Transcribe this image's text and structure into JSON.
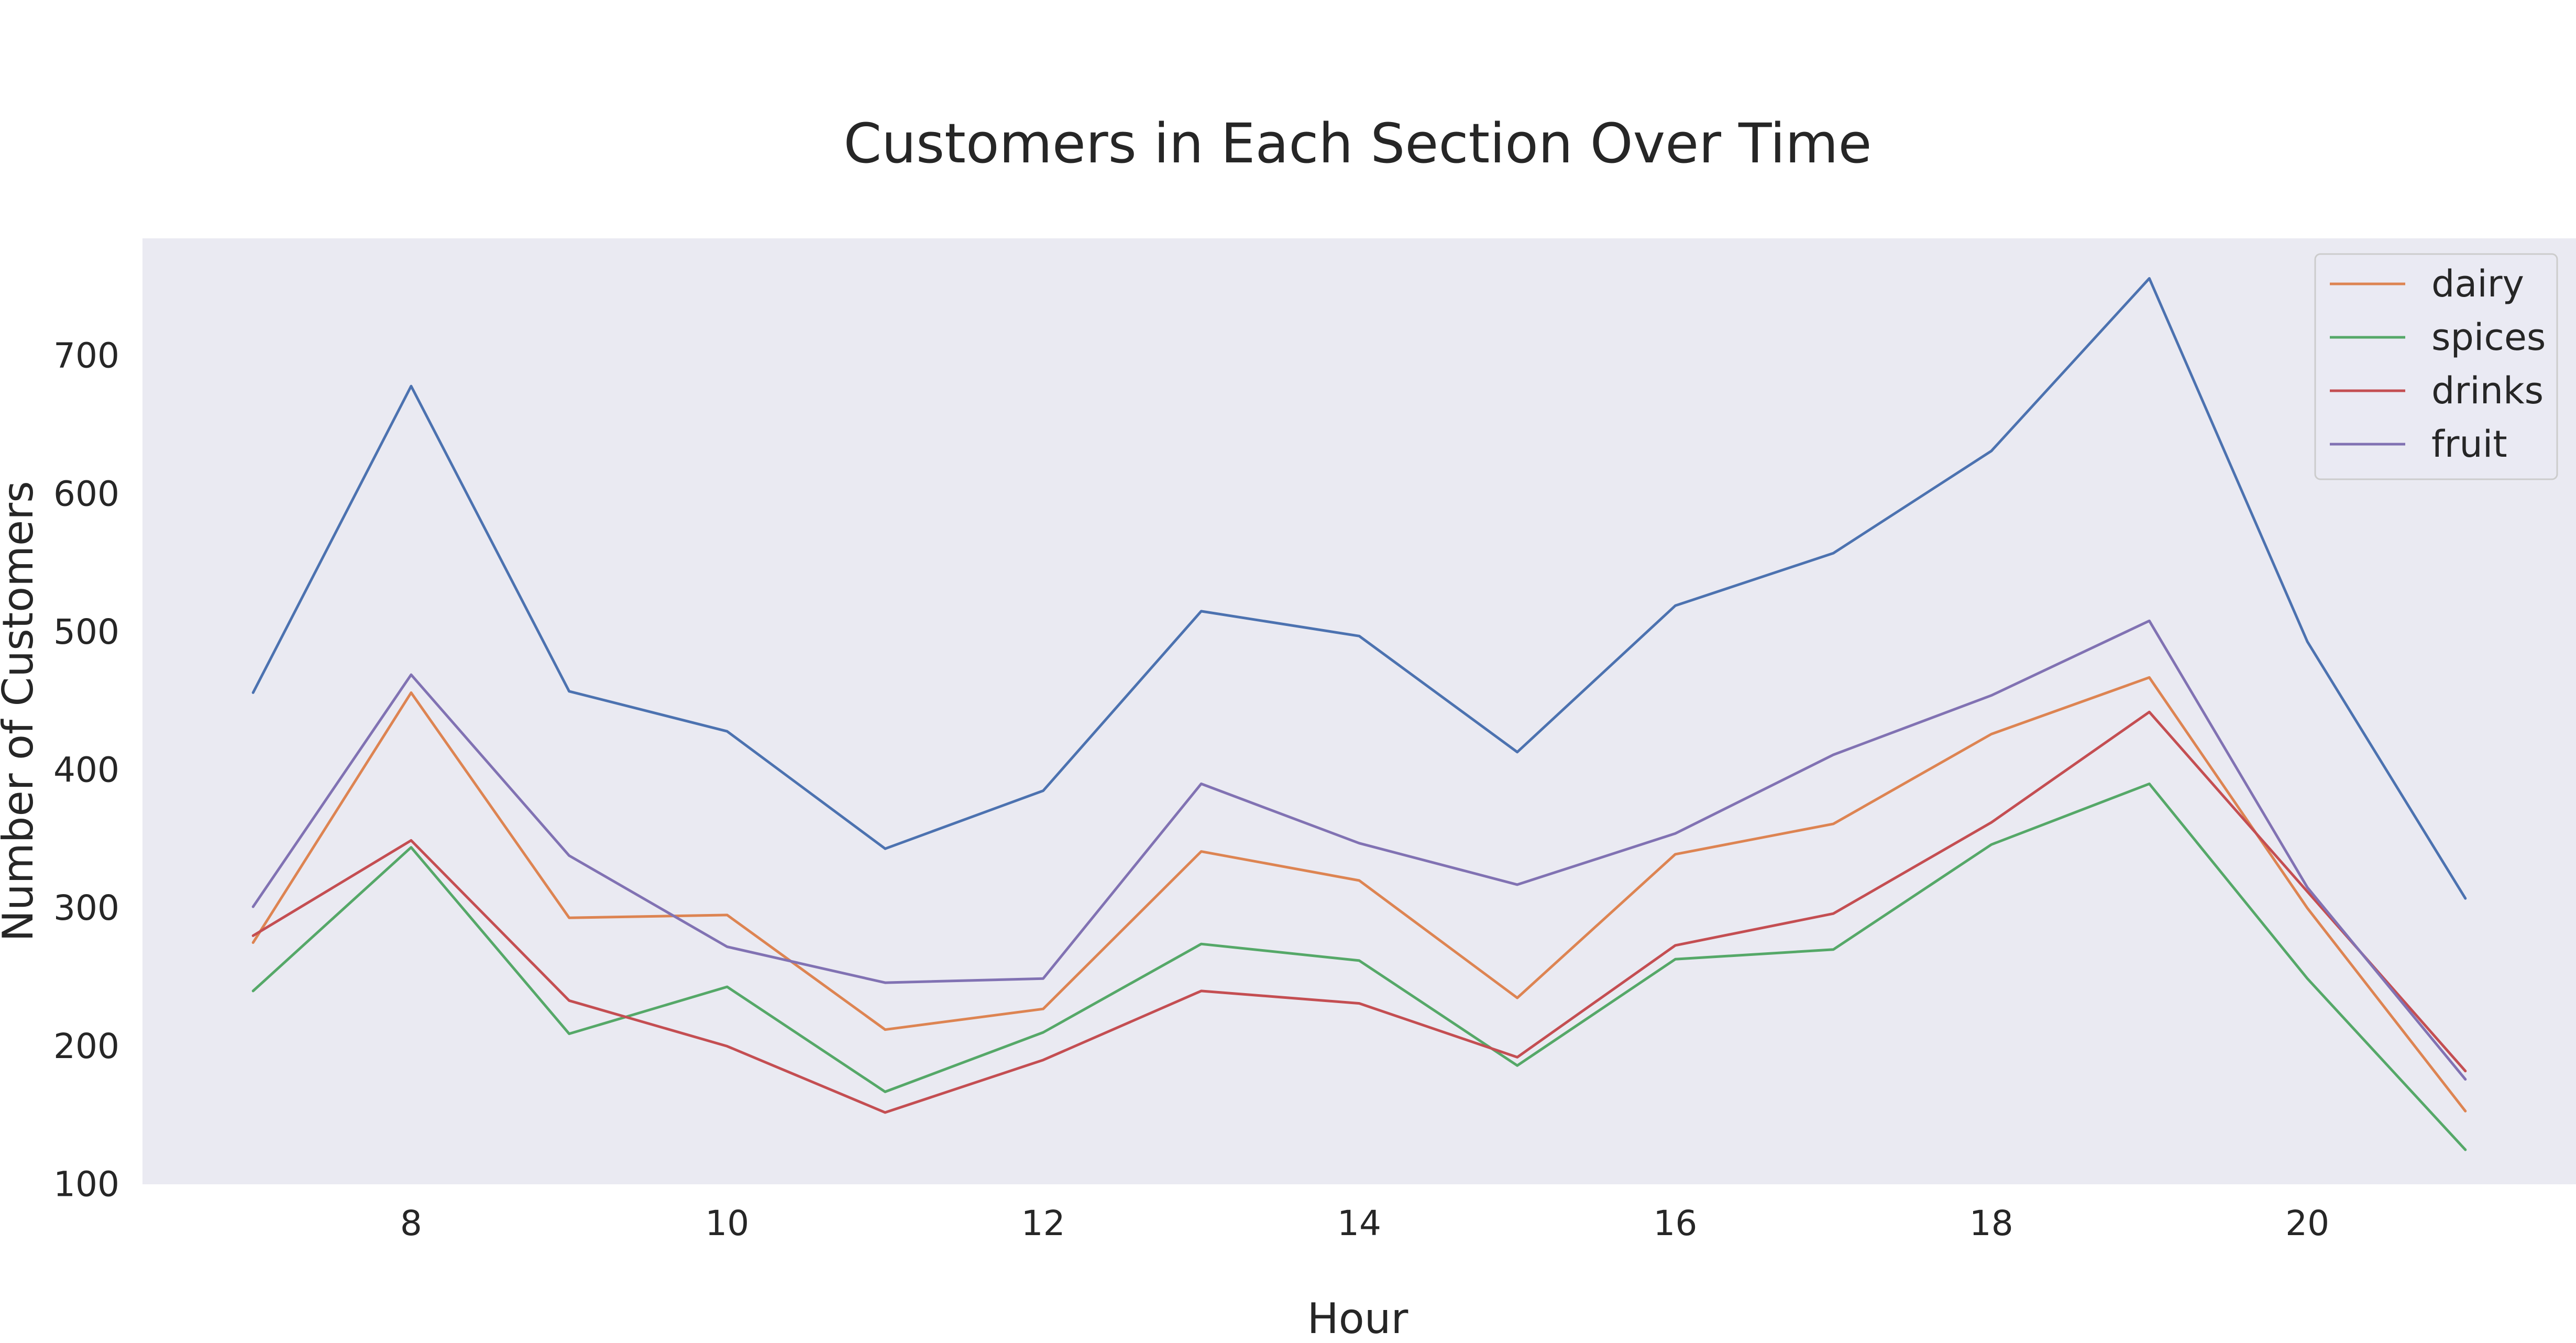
{
  "chart_data": {
    "type": "line",
    "title": "Customers in Each Section Over Time",
    "xlabel": "Hour",
    "ylabel": "Number of Customers",
    "x": [
      7,
      8,
      9,
      10,
      11,
      12,
      13,
      14,
      15,
      16,
      17,
      18,
      19,
      20,
      21
    ],
    "xlim": [
      6.3,
      21.7
    ],
    "ylim": [
      100,
      785
    ],
    "xticks": [
      8,
      10,
      12,
      14,
      16,
      18,
      20
    ],
    "yticks": [
      100,
      200,
      300,
      400,
      500,
      600,
      700
    ],
    "grid": false,
    "legend_position": "top-right",
    "background_color": "#eaeaf2",
    "series": [
      {
        "values": [
          456,
          678,
          457,
          428,
          343,
          385,
          515,
          497,
          413,
          519,
          557,
          631,
          756,
          493,
          307
        ],
        "color": "#4c72b0"
      },
      {
        "name": "dairy",
        "values": [
          275,
          456,
          293,
          295,
          212,
          227,
          341,
          320,
          235,
          339,
          361,
          426,
          467,
          300,
          153
        ],
        "color": "#dd8452"
      },
      {
        "name": "spices",
        "values": [
          240,
          344,
          209,
          243,
          167,
          210,
          274,
          262,
          186,
          263,
          270,
          346,
          390,
          249,
          125
        ],
        "color": "#55a868"
      },
      {
        "name": "drinks",
        "values": [
          280,
          349,
          233,
          200,
          152,
          190,
          240,
          231,
          192,
          273,
          296,
          362,
          442,
          312,
          182
        ],
        "color": "#c44e52"
      },
      {
        "name": "fruit",
        "values": [
          301,
          469,
          338,
          272,
          246,
          249,
          390,
          347,
          317,
          354,
          411,
          454,
          508,
          315,
          176
        ],
        "color": "#8172b3"
      }
    ]
  }
}
